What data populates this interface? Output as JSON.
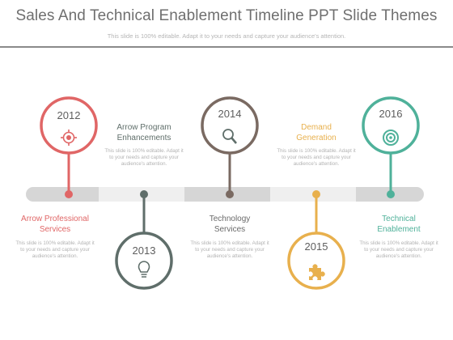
{
  "header": {
    "title": "Sales And Technical Enablement Timeline PPT Slide Themes",
    "subtitle": "This slide is 100% editable. Adapt it to your needs and capture your audience's attention."
  },
  "milestones": [
    {
      "year": "2012",
      "title": "Arrow Professional\nServices",
      "description": "This slide is 100% editable. Adapt it to your needs and capture your audience's attention.",
      "color": "#e06666",
      "icon": "target-icon"
    },
    {
      "year": "2013",
      "title": "Arrow Program\nEnhancements",
      "description": "This slide is 100% editable. Adapt it to your needs and capture your audience's attention.",
      "color": "#5f6e6a",
      "icon": "lightbulb-icon"
    },
    {
      "year": "2014",
      "title": "Technology\nServices",
      "description": "This slide is 100% editable. Adapt it to your needs and capture your audience's attention.",
      "color": "#7a6a62",
      "icon": "magnifier-icon"
    },
    {
      "year": "2015",
      "title": "Demand\nGeneration",
      "description": "This slide is 100% editable. Adapt it to your needs and capture your audience's attention.",
      "color": "#e8b04d",
      "icon": "puzzle-icon"
    },
    {
      "year": "2016",
      "title": "Technical\nEnablement",
      "description": "This slide is 100% editable. Adapt it to your needs and capture your audience's attention.",
      "color": "#4fb19a",
      "icon": "bullseye-icon"
    }
  ],
  "timeline": {
    "segment_light": "#efefef",
    "segment_dark": "#d6d6d6"
  }
}
